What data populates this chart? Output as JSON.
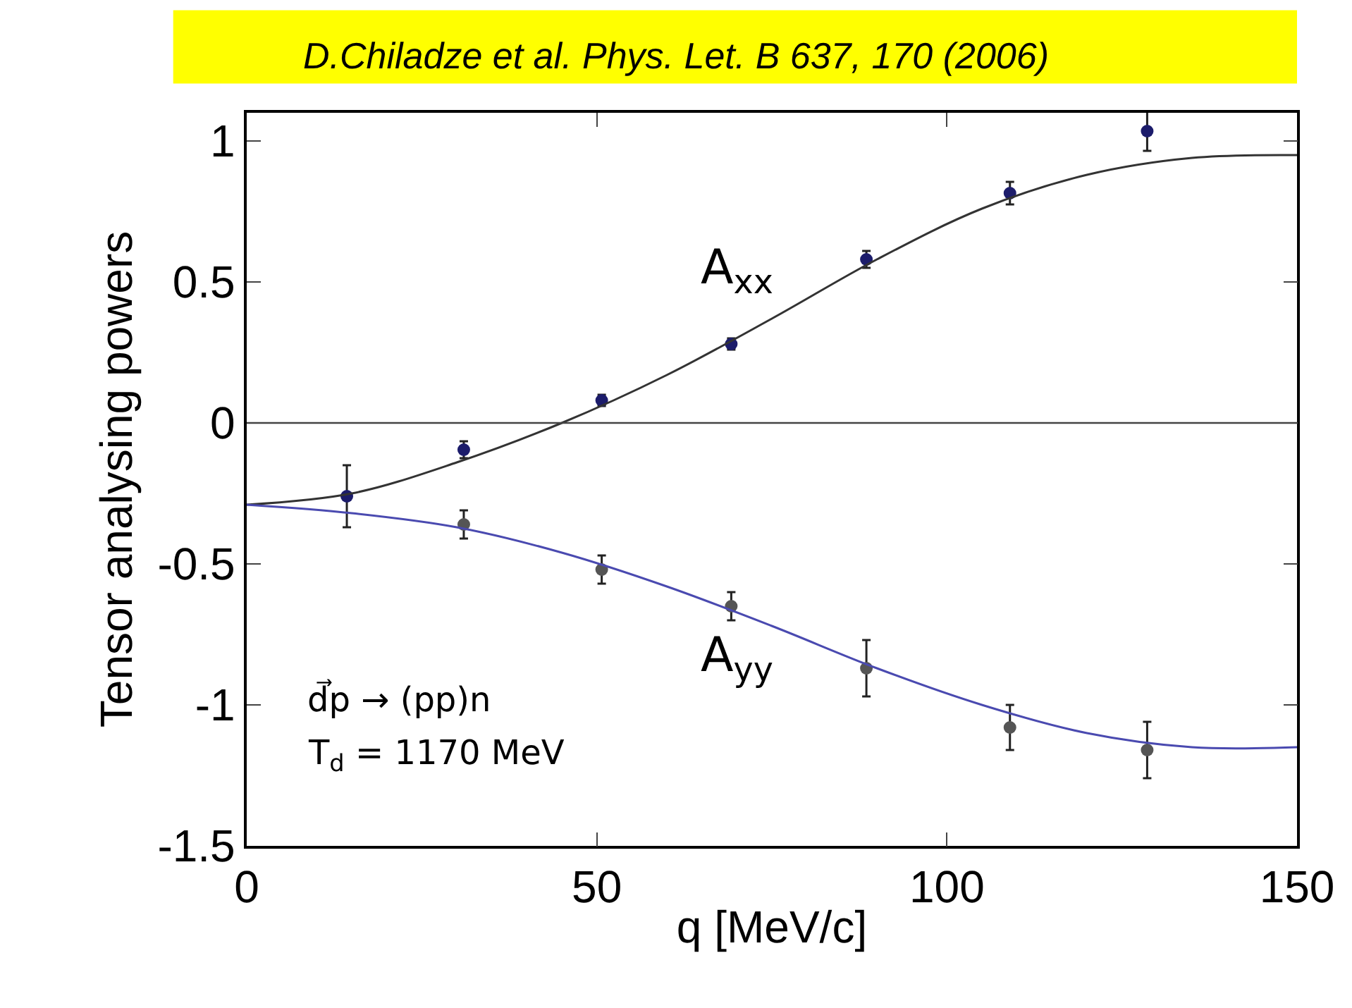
{
  "chart_data": {
    "type": "scatter",
    "title": "D.Chiladze et al. Phys. Let. B 637, 170 (2006)",
    "xlabel": "q [MeV/c]",
    "ylabel": "Tensor analysing powers",
    "xlim": [
      0,
      150
    ],
    "xticks": [
      0,
      50,
      100,
      150
    ],
    "ylim": [
      -1.5,
      1.1
    ],
    "yticks": [
      -1.5,
      -1,
      -0.5,
      0,
      0.5,
      1
    ],
    "series": [
      {
        "color": "#1c1c6b",
        "marker": "circle",
        "x": [
          14.3,
          31,
          50.7,
          69.2,
          88.5,
          109,
          128.6
        ],
        "values": [
          -0.26,
          -0.095,
          0.08,
          0.28,
          0.58,
          0.815,
          1.035
        ],
        "errors": [
          0.11,
          0.03,
          0.02,
          0.02,
          0.03,
          0.04,
          0.07
        ]
      },
      {
        "color": "#555555",
        "marker": "circle",
        "x": [
          31,
          50.7,
          69.2,
          88.5,
          109,
          128.6
        ],
        "values": [
          -0.36,
          -0.52,
          -0.65,
          -0.87,
          -1.08,
          -1.16
        ],
        "errors": [
          0.05,
          0.05,
          0.05,
          0.1,
          0.08,
          0.1
        ]
      },
      {
        "type": "line",
        "color": "#333333",
        "x": [
          0,
          15,
          30,
          45,
          60,
          75,
          90,
          105,
          120,
          135,
          150
        ],
        "values": [
          -0.29,
          -0.25,
          -0.14,
          0.0,
          0.17,
          0.37,
          0.58,
          0.76,
          0.88,
          0.94,
          0.95
        ]
      },
      {
        "type": "line",
        "color": "#4a4ab0",
        "x": [
          0,
          15,
          30,
          45,
          60,
          75,
          90,
          105,
          120,
          135,
          150
        ],
        "values": [
          -0.29,
          -0.32,
          -0.37,
          -0.46,
          -0.58,
          -0.72,
          -0.87,
          -1.0,
          -1.1,
          -1.15,
          -1.15
        ]
      }
    ],
    "ref_lines": [
      {
        "axis": "y",
        "value": 0,
        "color": "#444444"
      }
    ],
    "annotations": [
      "A$_{xx}$",
      "A$_{yy}$",
      "d⃗p → (pp)n",
      "T$_{d}$ = 1170 MeV"
    ]
  }
}
